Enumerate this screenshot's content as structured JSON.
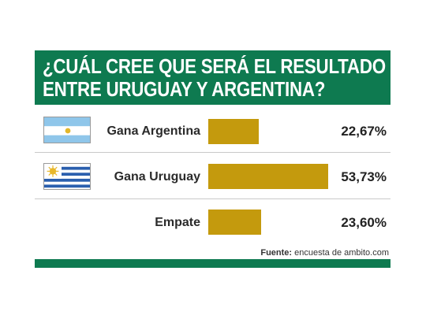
{
  "title_lines": [
    "¿CUÁL CREE QUE SERÁ EL RESULTADO",
    "ENTRE URUGUAY Y ARGENTINA?"
  ],
  "colors": {
    "header": "#0e7a50",
    "bar": "#c49a0d",
    "footer": "#0e7a50"
  },
  "chart_data": {
    "type": "bar",
    "orientation": "horizontal",
    "title": "¿CUÁL CREE QUE SERÁ EL RESULTADO ENTRE URUGUAY Y ARGENTINA?",
    "categories": [
      "Gana Argentina",
      "Gana Uruguay",
      "Empate"
    ],
    "values": [
      22.67,
      53.73,
      23.6
    ],
    "value_labels": [
      "22,67%",
      "53,73%",
      "23,60%"
    ],
    "flags": [
      "argentina-flag",
      "uruguay-flag",
      ""
    ],
    "unit": "%",
    "xlim": [
      0,
      53.73
    ],
    "grid": false,
    "legend": "none"
  },
  "source": {
    "label": "Fuente:",
    "text": " encuesta de ambito.com"
  }
}
